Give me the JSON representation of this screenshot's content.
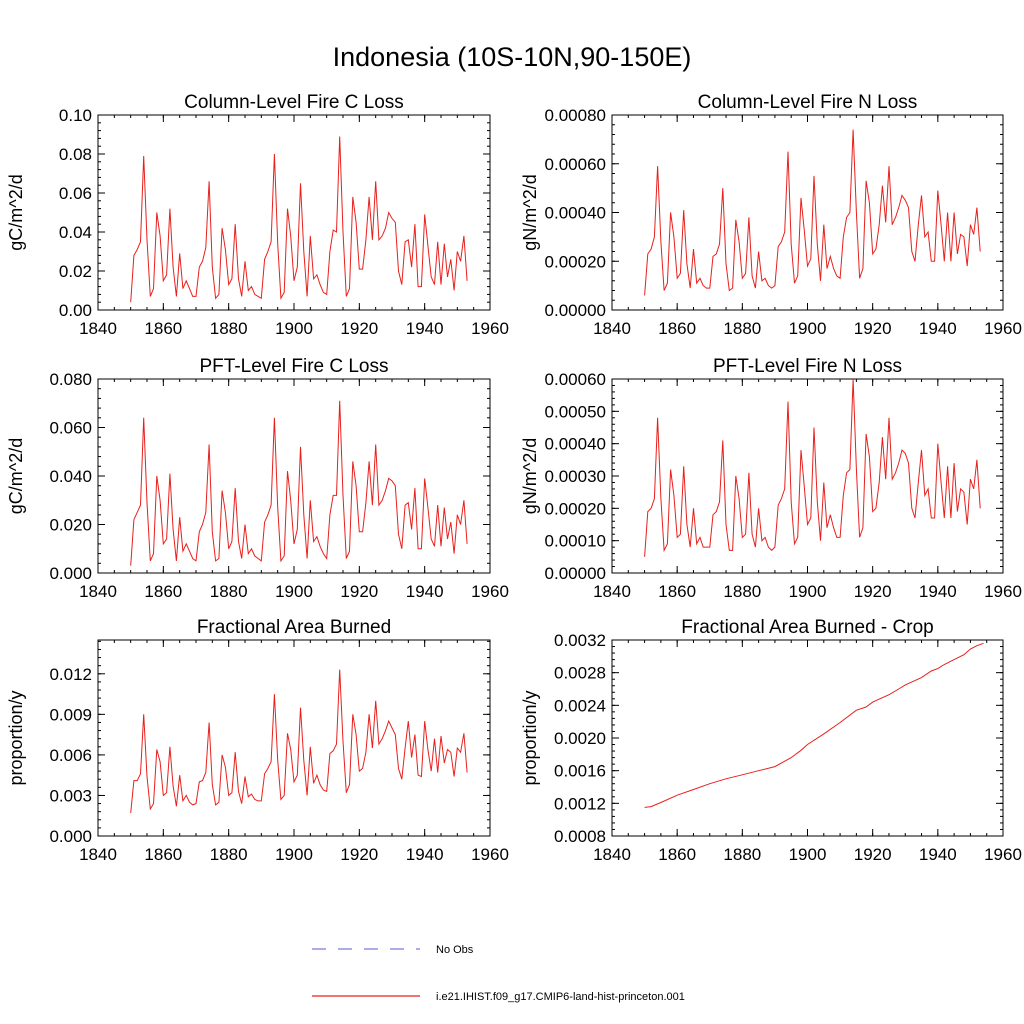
{
  "figure": {
    "title": "Indonesia (10S-10N,90-150E)"
  },
  "legend": [
    {
      "label": "No Obs",
      "color": "#7a7adc",
      "style": "dashed"
    },
    {
      "label": "i.e21.IHIST.f09_g17.CMIP6-land-hist-princeton.001",
      "color": "#e8201c",
      "style": "solid"
    }
  ],
  "chart_data": [
    {
      "type": "line",
      "title": "Column-Level Fire C Loss",
      "ylabel": "gC/m^2/d",
      "xlim": [
        1840,
        1960
      ],
      "xticks": [
        "1840",
        "1860",
        "1880",
        "1900",
        "1920",
        "1940",
        "1960"
      ],
      "ylim": [
        0,
        0.1
      ],
      "yticks": [
        "0.00",
        "0.02",
        "0.04",
        "0.06",
        "0.08",
        "0.10"
      ],
      "series": [
        {
          "color": "#e8201c",
          "x_start": 1850,
          "x_step": 1,
          "values": [
            0.004,
            0.028,
            0.031,
            0.035,
            0.079,
            0.036,
            0.007,
            0.011,
            0.05,
            0.038,
            0.015,
            0.018,
            0.052,
            0.022,
            0.007,
            0.029,
            0.011,
            0.015,
            0.011,
            0.007,
            0.007,
            0.022,
            0.025,
            0.032,
            0.066,
            0.022,
            0.006,
            0.008,
            0.042,
            0.031,
            0.013,
            0.016,
            0.044,
            0.016,
            0.007,
            0.025,
            0.01,
            0.012,
            0.008,
            0.007,
            0.006,
            0.026,
            0.03,
            0.035,
            0.08,
            0.034,
            0.006,
            0.009,
            0.052,
            0.038,
            0.015,
            0.022,
            0.065,
            0.03,
            0.007,
            0.038,
            0.016,
            0.018,
            0.013,
            0.009,
            0.008,
            0.03,
            0.041,
            0.04,
            0.089,
            0.04,
            0.007,
            0.011,
            0.058,
            0.045,
            0.021,
            0.021,
            0.036,
            0.058,
            0.036,
            0.066,
            0.036,
            0.038,
            0.042,
            0.05,
            0.047,
            0.045,
            0.02,
            0.013,
            0.035,
            0.036,
            0.022,
            0.044,
            0.012,
            0.012,
            0.049,
            0.033,
            0.017,
            0.013,
            0.035,
            0.013,
            0.034,
            0.017,
            0.026,
            0.01,
            0.03,
            0.025,
            0.038,
            0.015
          ]
        }
      ]
    },
    {
      "type": "line",
      "title": "Column-Level Fire N Loss",
      "ylabel": "gN/m^2/d",
      "xlim": [
        1840,
        1960
      ],
      "xticks": [
        "1840",
        "1860",
        "1880",
        "1900",
        "1920",
        "1940",
        "1960"
      ],
      "ylim": [
        0,
        0.0008
      ],
      "yticks": [
        "0.00000",
        "0.00020",
        "0.00040",
        "0.00060",
        "0.00080"
      ],
      "series": [
        {
          "color": "#e8201c",
          "x_start": 1850,
          "x_step": 1,
          "values": [
            6e-05,
            0.00023,
            0.00025,
            0.0003,
            0.00059,
            0.00028,
            8e-05,
            0.00011,
            0.0004,
            0.0003,
            0.00013,
            0.00015,
            0.00041,
            0.00019,
            9e-05,
            0.00025,
            0.00011,
            0.00013,
            0.0001,
            9e-05,
            9e-05,
            0.00022,
            0.00023,
            0.00027,
            0.0005,
            0.00019,
            8e-05,
            9e-05,
            0.00037,
            0.00028,
            0.00013,
            0.00015,
            0.00038,
            0.00014,
            9e-05,
            0.00024,
            0.00012,
            0.00013,
            0.0001,
            9e-05,
            0.0001,
            0.00026,
            0.00028,
            0.00032,
            0.00065,
            0.00027,
            0.00011,
            0.00014,
            0.00046,
            0.00033,
            0.00018,
            0.00021,
            0.00055,
            0.00027,
            0.00012,
            0.00035,
            0.00017,
            0.00022,
            0.00017,
            0.00014,
            0.00013,
            0.0003,
            0.00038,
            0.0004,
            0.00074,
            0.0004,
            0.00013,
            0.00017,
            0.00053,
            0.00044,
            0.00023,
            0.00025,
            0.00035,
            0.00051,
            0.00036,
            0.00059,
            0.00035,
            0.00038,
            0.00042,
            0.00047,
            0.00045,
            0.00042,
            0.00024,
            0.0002,
            0.00035,
            0.00047,
            0.0003,
            0.00032,
            0.0002,
            0.0002,
            0.00049,
            0.00035,
            0.0002,
            0.0004,
            0.0002,
            0.0004,
            0.00023,
            0.00031,
            0.0003,
            0.00018,
            0.00035,
            0.00031,
            0.00042,
            0.00024
          ]
        }
      ]
    },
    {
      "type": "line",
      "title": "PFT-Level Fire C Loss",
      "ylabel": "gC/m^2/d",
      "xlim": [
        1840,
        1960
      ],
      "xticks": [
        "1840",
        "1860",
        "1880",
        "1900",
        "1920",
        "1940",
        "1960"
      ],
      "ylim": [
        0,
        0.08
      ],
      "yticks": [
        "0.000",
        "0.020",
        "0.040",
        "0.060",
        "0.080"
      ],
      "series": [
        {
          "color": "#e8201c",
          "x_start": 1850,
          "x_step": 1,
          "values": [
            0.003,
            0.022,
            0.025,
            0.028,
            0.064,
            0.029,
            0.005,
            0.008,
            0.04,
            0.03,
            0.012,
            0.014,
            0.041,
            0.018,
            0.005,
            0.023,
            0.009,
            0.012,
            0.009,
            0.006,
            0.005,
            0.017,
            0.02,
            0.025,
            0.053,
            0.017,
            0.005,
            0.006,
            0.034,
            0.025,
            0.01,
            0.013,
            0.035,
            0.013,
            0.006,
            0.02,
            0.008,
            0.01,
            0.007,
            0.006,
            0.005,
            0.021,
            0.024,
            0.028,
            0.064,
            0.027,
            0.005,
            0.007,
            0.042,
            0.03,
            0.012,
            0.018,
            0.052,
            0.024,
            0.006,
            0.03,
            0.013,
            0.015,
            0.011,
            0.008,
            0.006,
            0.024,
            0.032,
            0.032,
            0.071,
            0.032,
            0.006,
            0.009,
            0.046,
            0.036,
            0.017,
            0.017,
            0.029,
            0.046,
            0.028,
            0.053,
            0.028,
            0.03,
            0.034,
            0.039,
            0.038,
            0.036,
            0.016,
            0.01,
            0.028,
            0.029,
            0.018,
            0.035,
            0.01,
            0.01,
            0.039,
            0.027,
            0.014,
            0.011,
            0.028,
            0.011,
            0.027,
            0.014,
            0.021,
            0.008,
            0.024,
            0.02,
            0.03,
            0.012
          ]
        }
      ]
    },
    {
      "type": "line",
      "title": "PFT-Level Fire N Loss",
      "ylabel": "gN/m^2/d",
      "xlim": [
        1840,
        1960
      ],
      "xticks": [
        "1840",
        "1860",
        "1880",
        "1900",
        "1920",
        "1940",
        "1960"
      ],
      "ylim": [
        0,
        0.0006
      ],
      "yticks": [
        "0.00000",
        "0.00010",
        "0.00020",
        "0.00030",
        "0.00040",
        "0.00050",
        "0.00060"
      ],
      "series": [
        {
          "color": "#e8201c",
          "x_start": 1850,
          "x_step": 1,
          "values": [
            5e-05,
            0.00019,
            0.0002,
            0.00023,
            0.00048,
            0.00023,
            7e-05,
            9e-05,
            0.00032,
            0.00024,
            0.00011,
            0.00012,
            0.00033,
            0.00015,
            8e-05,
            0.0002,
            9e-05,
            0.00011,
            8e-05,
            8e-05,
            8e-05,
            0.00018,
            0.00019,
            0.00022,
            0.00041,
            0.00015,
            7e-05,
            7e-05,
            0.0003,
            0.00023,
            0.00011,
            0.00012,
            0.00031,
            0.00012,
            8e-05,
            0.0002,
            0.0001,
            0.00011,
            8e-05,
            7e-05,
            8e-05,
            0.00021,
            0.00023,
            0.00026,
            0.00053,
            0.00022,
            9e-05,
            0.00011,
            0.00038,
            0.00027,
            0.00015,
            0.00017,
            0.00045,
            0.00022,
            0.0001,
            0.00028,
            0.00014,
            0.00018,
            0.00014,
            0.00011,
            0.00011,
            0.00024,
            0.00031,
            0.00032,
            0.0006,
            0.00032,
            0.00011,
            0.00014,
            0.00043,
            0.00036,
            0.00019,
            0.0002,
            0.00028,
            0.00042,
            0.00029,
            0.00048,
            0.00029,
            0.00031,
            0.00034,
            0.00038,
            0.00037,
            0.00034,
            0.0002,
            0.00017,
            0.00028,
            0.00038,
            0.00024,
            0.00026,
            0.00017,
            0.00017,
            0.0004,
            0.00028,
            0.00017,
            0.00033,
            0.00017,
            0.00034,
            0.00019,
            0.00026,
            0.00025,
            0.00015,
            0.00029,
            0.00026,
            0.00035,
            0.0002
          ]
        }
      ]
    },
    {
      "type": "line",
      "title": "Fractional Area Burned",
      "ylabel": "proportion/y",
      "xlim": [
        1840,
        1960
      ],
      "xticks": [
        "1840",
        "1860",
        "1880",
        "1900",
        "1920",
        "1940",
        "1960"
      ],
      "ylim": [
        0,
        0.0145
      ],
      "yticks": [
        "0.000",
        "0.003",
        "0.006",
        "0.009",
        "0.012"
      ],
      "series": [
        {
          "color": "#e8201c",
          "x_start": 1850,
          "x_step": 1,
          "values": [
            0.0017,
            0.0041,
            0.0041,
            0.0046,
            0.009,
            0.0044,
            0.002,
            0.0024,
            0.0064,
            0.0055,
            0.003,
            0.0032,
            0.0066,
            0.0037,
            0.0022,
            0.0045,
            0.0026,
            0.003,
            0.0025,
            0.0023,
            0.0024,
            0.004,
            0.0041,
            0.0047,
            0.0084,
            0.0038,
            0.0023,
            0.0025,
            0.006,
            0.0051,
            0.003,
            0.0032,
            0.0062,
            0.0033,
            0.0024,
            0.0044,
            0.0029,
            0.0031,
            0.0027,
            0.0026,
            0.0026,
            0.0046,
            0.005,
            0.0055,
            0.0105,
            0.0056,
            0.0027,
            0.003,
            0.0076,
            0.0064,
            0.004,
            0.0045,
            0.0095,
            0.0056,
            0.003,
            0.0066,
            0.0039,
            0.0045,
            0.0038,
            0.0034,
            0.0033,
            0.0061,
            0.0063,
            0.0068,
            0.0123,
            0.007,
            0.0032,
            0.0038,
            0.009,
            0.0075,
            0.0048,
            0.005,
            0.0062,
            0.009,
            0.0065,
            0.01,
            0.0068,
            0.0072,
            0.0078,
            0.0085,
            0.008,
            0.0075,
            0.005,
            0.0042,
            0.0065,
            0.0085,
            0.0058,
            0.0075,
            0.0045,
            0.0044,
            0.0085,
            0.0064,
            0.0048,
            0.0072,
            0.0047,
            0.0074,
            0.0054,
            0.0064,
            0.0062,
            0.0044,
            0.0065,
            0.0062,
            0.0076,
            0.0047
          ]
        }
      ]
    },
    {
      "type": "line",
      "title": "Fractional Area Burned - Crop",
      "ylabel": "proportion/y",
      "xlim": [
        1840,
        1960
      ],
      "xticks": [
        "1840",
        "1860",
        "1880",
        "1900",
        "1920",
        "1940",
        "1960"
      ],
      "ylim": [
        0.0008,
        0.0032
      ],
      "yticks": [
        "0.0008",
        "0.0012",
        "0.0016",
        "0.0020",
        "0.0024",
        "0.0028",
        "0.0032"
      ],
      "series": [
        {
          "color": "#e8201c",
          "x": [
            1850,
            1852,
            1855,
            1860,
            1865,
            1870,
            1875,
            1880,
            1885,
            1890,
            1895,
            1898,
            1900,
            1905,
            1910,
            1915,
            1918,
            1920,
            1925,
            1928,
            1930,
            1935,
            1938,
            1940,
            1942,
            1945,
            1948,
            1950,
            1952,
            1954
          ],
          "values": [
            0.00115,
            0.00116,
            0.00121,
            0.0013,
            0.00137,
            0.00144,
            0.0015,
            0.00155,
            0.0016,
            0.00165,
            0.00176,
            0.00185,
            0.00192,
            0.00205,
            0.00219,
            0.00234,
            0.00238,
            0.00244,
            0.00253,
            0.0026,
            0.00265,
            0.00274,
            0.00282,
            0.00285,
            0.0029,
            0.00296,
            0.00302,
            0.00309,
            0.00313,
            0.00316
          ]
        }
      ]
    }
  ]
}
